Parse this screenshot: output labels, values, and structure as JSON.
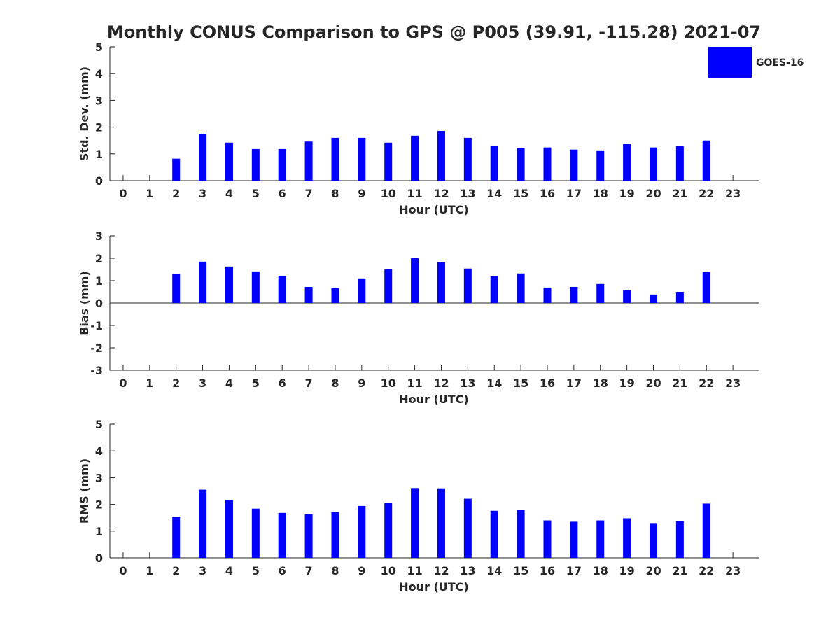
{
  "title": "Monthly CONUS Comparison to GPS @ P005 (39.91, -115.28) 2021-07",
  "legend": {
    "label": "GOES-16",
    "color": "#0000ff"
  },
  "chart_data": [
    {
      "type": "bar",
      "name": "std",
      "series_name": "GOES-16",
      "color": "#0000ff",
      "xlabel": "Hour (UTC)",
      "ylabel": "Std. Dev. (mm)",
      "ylim": [
        0,
        5
      ],
      "yticks": [
        "0",
        "1",
        "2",
        "3",
        "4",
        "5"
      ],
      "categories": [
        "0",
        "1",
        "2",
        "3",
        "4",
        "5",
        "6",
        "7",
        "8",
        "9",
        "10",
        "11",
        "12",
        "13",
        "14",
        "15",
        "16",
        "17",
        "18",
        "19",
        "20",
        "21",
        "22",
        "23"
      ],
      "values": [
        null,
        null,
        0.82,
        1.75,
        1.42,
        1.18,
        1.18,
        1.46,
        1.6,
        1.6,
        1.42,
        1.68,
        1.86,
        1.6,
        1.31,
        1.21,
        1.24,
        1.16,
        1.13,
        1.37,
        1.24,
        1.29,
        1.5,
        null
      ]
    },
    {
      "type": "bar",
      "name": "bias",
      "series_name": "GOES-16",
      "color": "#0000ff",
      "xlabel": "Hour (UTC)",
      "ylabel": "Bias (mm)",
      "ylim": [
        -3,
        3
      ],
      "yticks": [
        "-3",
        "-2",
        "-1",
        "0",
        "1",
        "2",
        "3"
      ],
      "categories": [
        "0",
        "1",
        "2",
        "3",
        "4",
        "5",
        "6",
        "7",
        "8",
        "9",
        "10",
        "11",
        "12",
        "13",
        "14",
        "15",
        "16",
        "17",
        "18",
        "19",
        "20",
        "21",
        "22",
        "23"
      ],
      "values": [
        null,
        null,
        1.29,
        1.85,
        1.63,
        1.41,
        1.22,
        0.72,
        0.66,
        1.1,
        1.5,
        2.0,
        1.82,
        1.54,
        1.19,
        1.32,
        0.69,
        0.72,
        0.85,
        0.57,
        0.38,
        0.5,
        1.38,
        null
      ]
    },
    {
      "type": "bar",
      "name": "rms",
      "series_name": "GOES-16",
      "color": "#0000ff",
      "xlabel": "Hour (UTC)",
      "ylabel": "RMS (mm)",
      "ylim": [
        0,
        5
      ],
      "yticks": [
        "0",
        "1",
        "2",
        "3",
        "4",
        "5"
      ],
      "categories": [
        "0",
        "1",
        "2",
        "3",
        "4",
        "5",
        "6",
        "7",
        "8",
        "9",
        "10",
        "11",
        "12",
        "13",
        "14",
        "15",
        "16",
        "17",
        "18",
        "19",
        "20",
        "21",
        "22",
        "23"
      ],
      "values": [
        null,
        null,
        1.54,
        2.55,
        2.16,
        1.84,
        1.68,
        1.63,
        1.71,
        1.94,
        2.05,
        2.61,
        2.6,
        2.21,
        1.76,
        1.79,
        1.4,
        1.35,
        1.4,
        1.48,
        1.3,
        1.37,
        2.03,
        null
      ]
    }
  ]
}
